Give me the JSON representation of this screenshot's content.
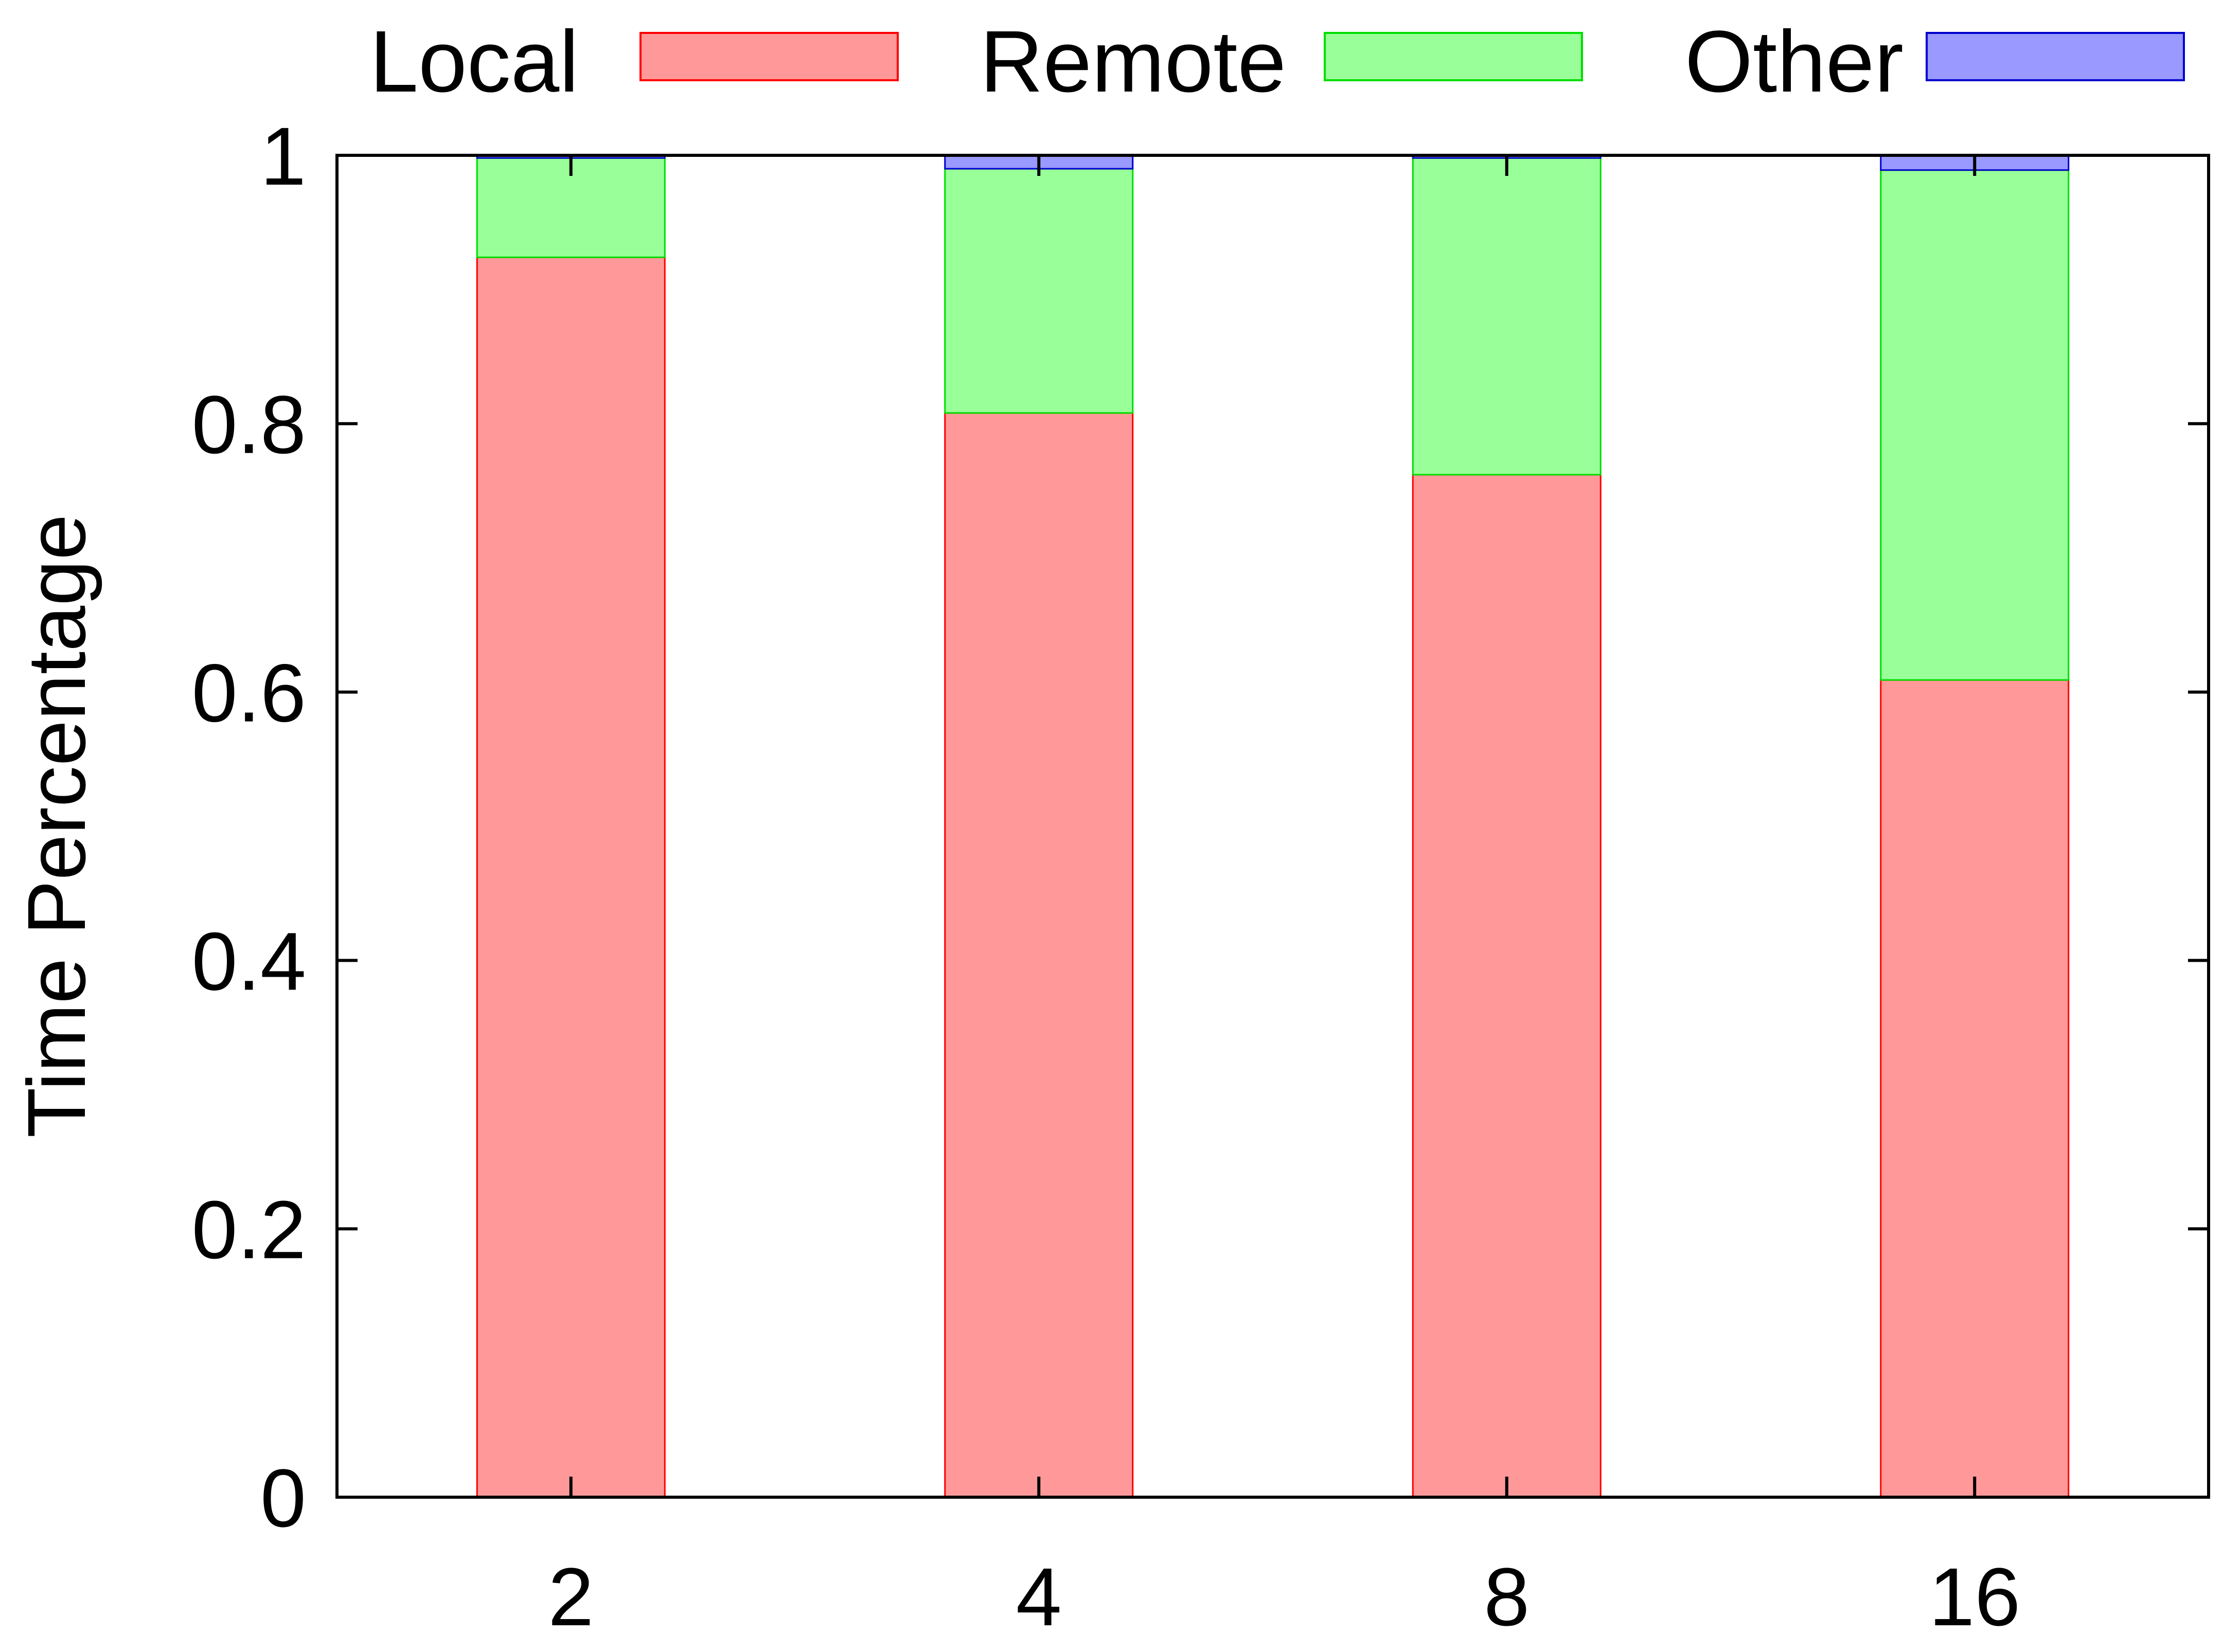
{
  "chart_data": {
    "type": "bar",
    "stacked": true,
    "categories": [
      "2",
      "4",
      "8",
      "16"
    ],
    "series": [
      {
        "name": "Local",
        "values": [
          0.924,
          0.808,
          0.762,
          0.609
        ],
        "fill": "#ff9999",
        "stroke": "#ff0000"
      },
      {
        "name": "Remote",
        "values": [
          0.074,
          0.182,
          0.236,
          0.38
        ],
        "fill": "#99ff99",
        "stroke": "#00dd00"
      },
      {
        "name": "Other",
        "values": [
          0.002,
          0.01,
          0.002,
          0.011
        ],
        "fill": "#9999ff",
        "stroke": "#0000cc"
      }
    ],
    "xlabel": "",
    "ylabel": "Time Percentage",
    "ylim": [
      0,
      1
    ],
    "yticks": [
      "0",
      "0.2",
      "0.4",
      "0.6",
      "0.8",
      "1"
    ],
    "grid": false,
    "legend_position": "top"
  }
}
